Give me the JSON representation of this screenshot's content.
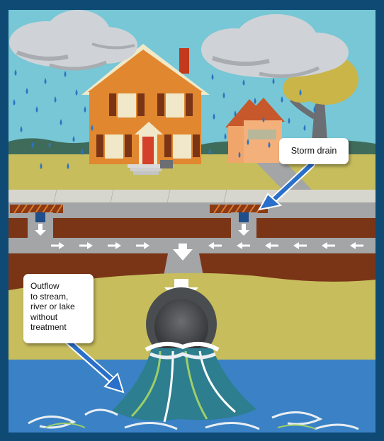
{
  "labels": {
    "storm_drain": "Storm drain",
    "outflow_lines": [
      "Outflow",
      "to stream,",
      "river or lake",
      "without",
      "treatment"
    ]
  },
  "colors": {
    "frame": "#0e4a73",
    "sky": "#77c7d6",
    "lawn": "#c7bd5d",
    "soil": "#7a3517",
    "pipe": "#a3a5a7",
    "water": "#3a82c5",
    "house": "#e8863a",
    "callout_arrow": "#2a6fc9"
  },
  "icons": [
    "cloud-icon",
    "raindrop-icon",
    "flow-arrow-icon",
    "house-icon",
    "tree-icon",
    "storm-grate-icon",
    "outflow-pipe-icon"
  ]
}
